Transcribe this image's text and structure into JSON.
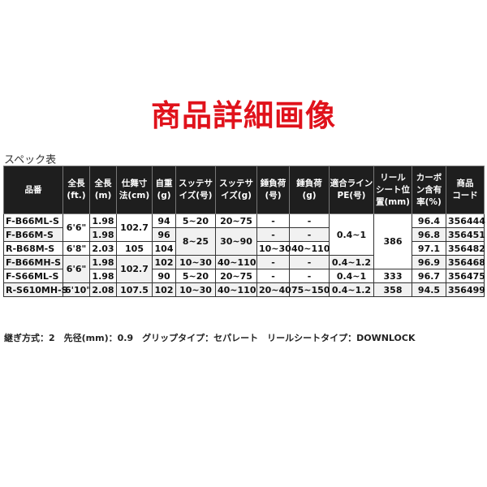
{
  "title": "商品詳細画像",
  "spec_label": "スペック表",
  "colors": {
    "title": "#e0121b",
    "header_bg": "#1e1e1e",
    "alt_row": "#f1f1f1"
  },
  "table": {
    "headers": [
      "品番",
      "全長\n(ft.)",
      "全長\n(m)",
      "仕舞寸\n法(cm)",
      "自重\n(g)",
      "スッテサ\nイズ(号)",
      "スッテサ\nイズ(g)",
      "錘負荷\n(号)",
      "錘負荷\n(g)",
      "適合ライン\nPE(号)",
      "リール\nシート位\n置(mm)",
      "カーボ\nン含有\n率(%)",
      "商品\nコード"
    ],
    "rows": [
      [
        {
          "v": "F-B66ML-S"
        },
        {
          "v": "6'6\"",
          "rs": 2
        },
        {
          "v": "1.98"
        },
        {
          "v": "102.7",
          "rs": 2
        },
        {
          "v": "94"
        },
        {
          "v": "5~20"
        },
        {
          "v": "20~75"
        },
        {
          "v": "-"
        },
        {
          "v": "-"
        },
        {
          "v": "0.4~1",
          "rs": 3
        },
        {
          "v": "386",
          "rs": 4
        },
        {
          "v": "96.4"
        },
        {
          "v": "356444"
        }
      ],
      [
        {
          "v": "F-B66M-S"
        },
        {
          "v": "1.98"
        },
        {
          "v": "96"
        },
        {
          "v": "8~25",
          "rs": 2
        },
        {
          "v": "30~90",
          "rs": 2
        },
        {
          "v": "-"
        },
        {
          "v": "-"
        },
        {
          "v": "96.8"
        },
        {
          "v": "356451"
        }
      ],
      [
        {
          "v": "R-B68M-S"
        },
        {
          "v": "6'8\""
        },
        {
          "v": "2.03"
        },
        {
          "v": "105"
        },
        {
          "v": "104"
        },
        {
          "v": "10~30"
        },
        {
          "v": "40~110"
        },
        {
          "v": "97.1"
        },
        {
          "v": "356482"
        }
      ],
      [
        {
          "v": "F-B66MH-S"
        },
        {
          "v": "6'6\"",
          "rs": 2
        },
        {
          "v": "1.98"
        },
        {
          "v": "102.7",
          "rs": 2
        },
        {
          "v": "102"
        },
        {
          "v": "10~30"
        },
        {
          "v": "40~110"
        },
        {
          "v": "-"
        },
        {
          "v": "-"
        },
        {
          "v": "0.4~1.2"
        },
        {
          "v": "96.9"
        },
        {
          "v": "356468"
        }
      ],
      [
        {
          "v": "F-S66ML-S"
        },
        {
          "v": "1.98"
        },
        {
          "v": "90"
        },
        {
          "v": "5~20"
        },
        {
          "v": "20~75"
        },
        {
          "v": "-"
        },
        {
          "v": "-"
        },
        {
          "v": "0.4~1"
        },
        {
          "v": "333"
        },
        {
          "v": "96.7"
        },
        {
          "v": "356475"
        }
      ],
      [
        {
          "v": "R-S610MH-S"
        },
        {
          "v": "6'10\""
        },
        {
          "v": "2.08"
        },
        {
          "v": "107.5"
        },
        {
          "v": "102"
        },
        {
          "v": "10~30"
        },
        {
          "v": "40~110"
        },
        {
          "v": "20~40"
        },
        {
          "v": "75~150"
        },
        {
          "v": "0.4~1.2"
        },
        {
          "v": "358"
        },
        {
          "v": "94.5"
        },
        {
          "v": "356499"
        }
      ]
    ]
  },
  "footer": "継ぎ方式：2　先径(mm)：0.9　グリップタイプ：セパレート　リールシートタイプ：DOWNLOCK"
}
